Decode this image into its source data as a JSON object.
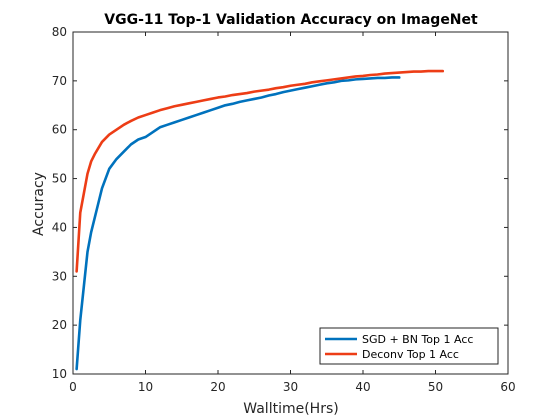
{
  "chart_data": {
    "type": "line",
    "title": "VGG-11 Top-1 Validation Accuracy on ImageNet",
    "xlabel": "Walltime(Hrs)",
    "ylabel": "Accuracy",
    "xlim": [
      0,
      60
    ],
    "ylim": [
      10,
      80
    ],
    "xticks": [
      "0",
      "10",
      "20",
      "30",
      "40",
      "50",
      "60"
    ],
    "yticks": [
      "10",
      "20",
      "30",
      "40",
      "50",
      "60",
      "70",
      "80"
    ],
    "grid": false,
    "legend_position": "bottom-right",
    "series": [
      {
        "name": "SGD + BN Top 1 Acc",
        "color": "#0072BD",
        "x": [
          0.5,
          1,
          1.5,
          2,
          2.5,
          3,
          3.5,
          4,
          5,
          6,
          7,
          8,
          9,
          10,
          11,
          12,
          13,
          14,
          15,
          16,
          17,
          18,
          19,
          20,
          21,
          22,
          23,
          24,
          25,
          26,
          27,
          28,
          29,
          30,
          31,
          32,
          33,
          34,
          35,
          36,
          37,
          38,
          39,
          40,
          41,
          42,
          43,
          44,
          45
        ],
        "y": [
          11,
          21,
          28,
          35,
          39,
          42,
          45,
          48,
          52,
          54,
          55.5,
          57,
          58,
          58.5,
          59.5,
          60.5,
          61,
          61.5,
          62,
          62.5,
          63,
          63.5,
          64,
          64.5,
          65,
          65.3,
          65.7,
          66,
          66.3,
          66.6,
          67,
          67.3,
          67.7,
          68,
          68.3,
          68.6,
          68.9,
          69.2,
          69.5,
          69.7,
          70,
          70.1,
          70.3,
          70.4,
          70.5,
          70.6,
          70.6,
          70.7,
          70.7
        ]
      },
      {
        "name": "Deconv Top 1 Acc",
        "color": "#ED3D16",
        "x": [
          0.5,
          1,
          1.5,
          2,
          2.5,
          3,
          4,
          5,
          6,
          7,
          8,
          9,
          10,
          11,
          12,
          13,
          14,
          15,
          16,
          17,
          18,
          19,
          20,
          21,
          22,
          23,
          24,
          25,
          26,
          27,
          28,
          29,
          30,
          31,
          32,
          33,
          34,
          35,
          36,
          37,
          38,
          39,
          40,
          41,
          42,
          43,
          44,
          45,
          46,
          47,
          48,
          49,
          50,
          51
        ],
        "y": [
          31,
          43,
          47,
          51,
          53.5,
          55,
          57.5,
          59,
          60,
          61,
          61.8,
          62.5,
          63,
          63.5,
          64,
          64.4,
          64.8,
          65.1,
          65.4,
          65.7,
          66,
          66.3,
          66.6,
          66.8,
          67.1,
          67.3,
          67.5,
          67.8,
          68,
          68.2,
          68.5,
          68.7,
          69,
          69.2,
          69.4,
          69.7,
          69.9,
          70.1,
          70.3,
          70.5,
          70.7,
          70.9,
          71,
          71.2,
          71.3,
          71.5,
          71.6,
          71.7,
          71.8,
          71.9,
          71.9,
          72,
          72,
          72
        ]
      }
    ]
  }
}
